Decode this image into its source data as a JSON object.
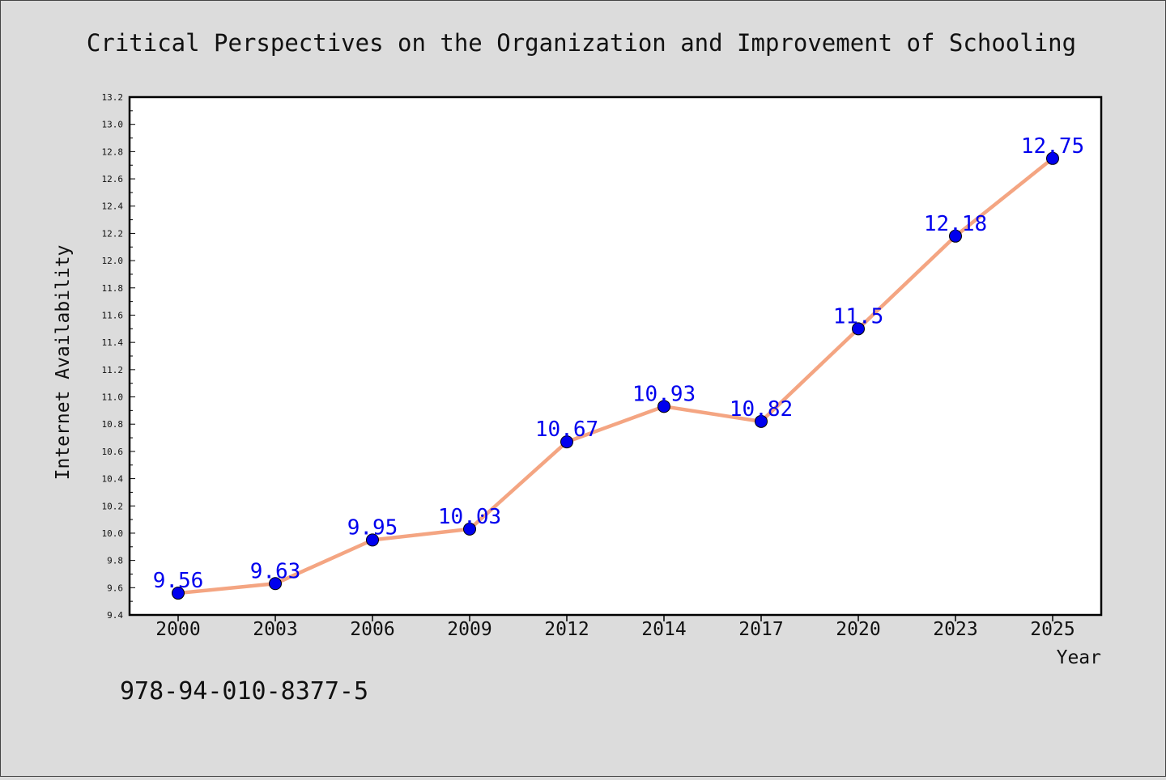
{
  "chart_data": {
    "type": "line",
    "title": "Critical Perspectives on the Organization and Improvement of Schooling",
    "xlabel": "Year",
    "ylabel": "Internet Availability",
    "categories": [
      "2000",
      "2003",
      "2006",
      "2009",
      "2012",
      "2014",
      "2017",
      "2020",
      "2023",
      "2025"
    ],
    "series": [
      {
        "values": [
          9.56,
          9.63,
          9.95,
          10.03,
          10.67,
          10.93,
          10.82,
          11.5,
          12.18,
          12.75
        ],
        "labels": [
          "9.56",
          "9.63",
          "9.95",
          "10.03",
          "10.67",
          "10.93",
          "10.82",
          "11.5",
          "12.18",
          "12.75"
        ],
        "line_color": "#f4a582",
        "marker_color": "#0000ee"
      }
    ],
    "ylim": [
      9.4,
      13.2
    ],
    "yticks": [
      "9.4",
      "9.6",
      "9.8",
      "10.0",
      "10.2",
      "10.4",
      "10.6",
      "10.8",
      "11.0",
      "11.2",
      "11.4",
      "11.6",
      "11.8",
      "12.0",
      "12.2",
      "12.4",
      "12.6",
      "12.8",
      "13.0",
      "13.2"
    ],
    "grid": false,
    "label_color": "#0000ee",
    "annotation": "978-94-010-8377-5"
  }
}
